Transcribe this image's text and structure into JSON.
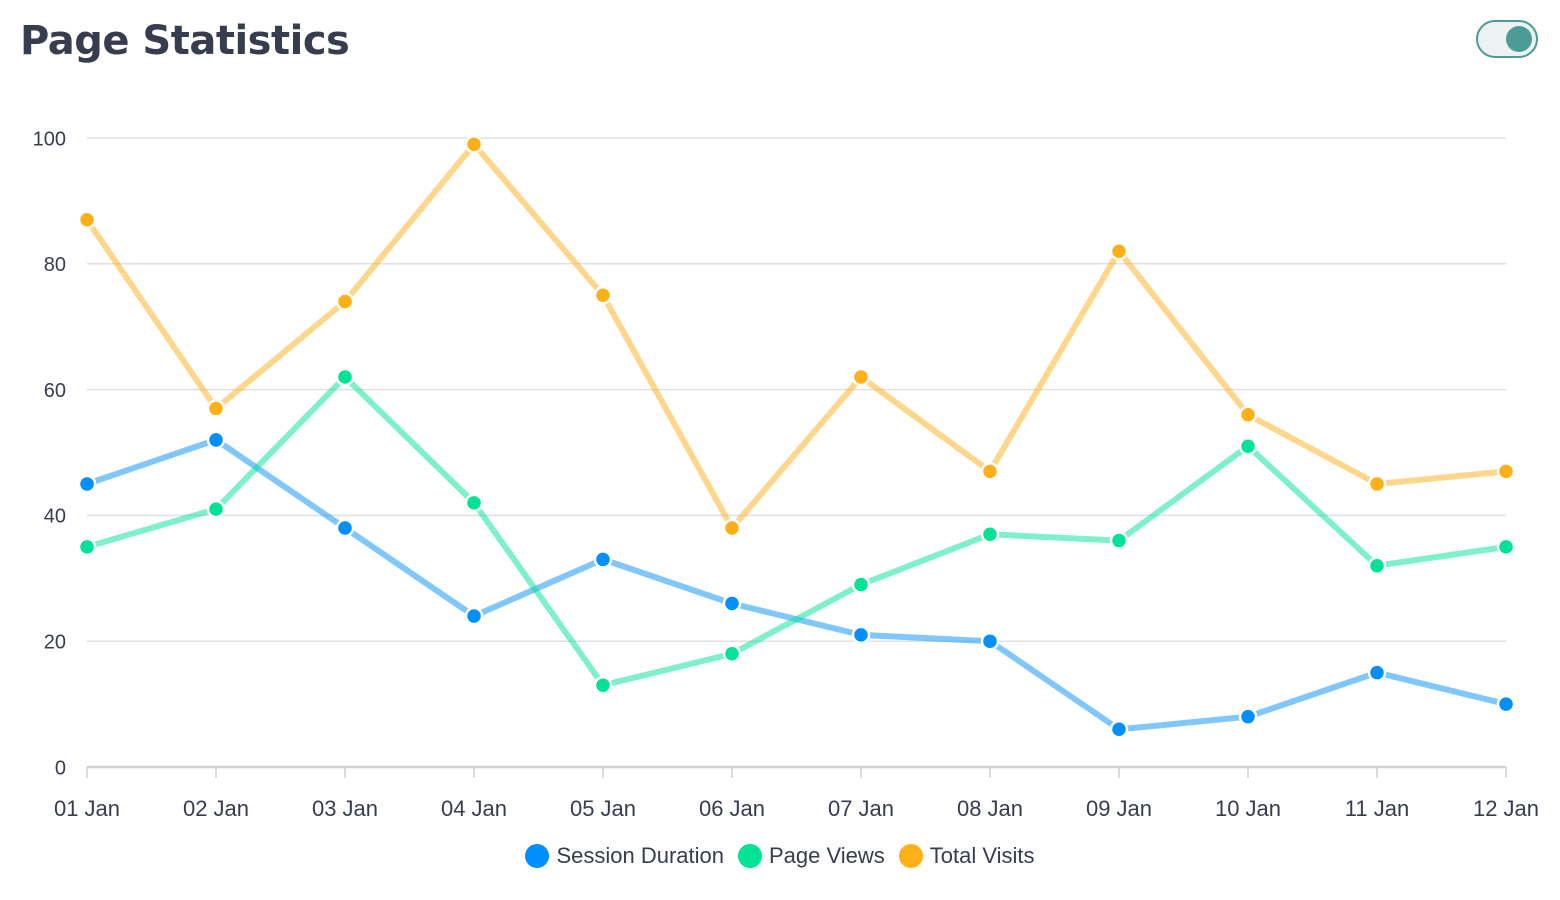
{
  "header": {
    "title": "Page Statistics",
    "toggle_state": "on"
  },
  "colors": {
    "title": "#373d4f",
    "toggle": "#4a9c95",
    "grid": "#e0e0e0",
    "axis": "#d0d0d0",
    "tick_text": "#373d4f"
  },
  "chart_data": {
    "type": "line",
    "categories": [
      "01 Jan",
      "02 Jan",
      "03 Jan",
      "04 Jan",
      "05 Jan",
      "06 Jan",
      "07 Jan",
      "08 Jan",
      "09 Jan",
      "10 Jan",
      "11 Jan",
      "12 Jan"
    ],
    "y_ticks": [
      "0",
      "20",
      "40",
      "60",
      "80",
      "100"
    ],
    "ylim": [
      0,
      100
    ],
    "grid": true,
    "legend_position": "bottom",
    "series": [
      {
        "name": "Session Duration",
        "color": "#008ffb",
        "values": [
          45,
          52,
          38,
          24,
          33,
          26,
          21,
          20,
          6,
          8,
          15,
          10
        ]
      },
      {
        "name": "Page Views",
        "color": "#00e396",
        "values": [
          35,
          41,
          62,
          42,
          13,
          18,
          29,
          37,
          36,
          51,
          32,
          35
        ]
      },
      {
        "name": "Total Visits",
        "color": "#feb019",
        "values": [
          87,
          57,
          74,
          99,
          75,
          38,
          62,
          47,
          82,
          56,
          45,
          47
        ]
      }
    ]
  }
}
